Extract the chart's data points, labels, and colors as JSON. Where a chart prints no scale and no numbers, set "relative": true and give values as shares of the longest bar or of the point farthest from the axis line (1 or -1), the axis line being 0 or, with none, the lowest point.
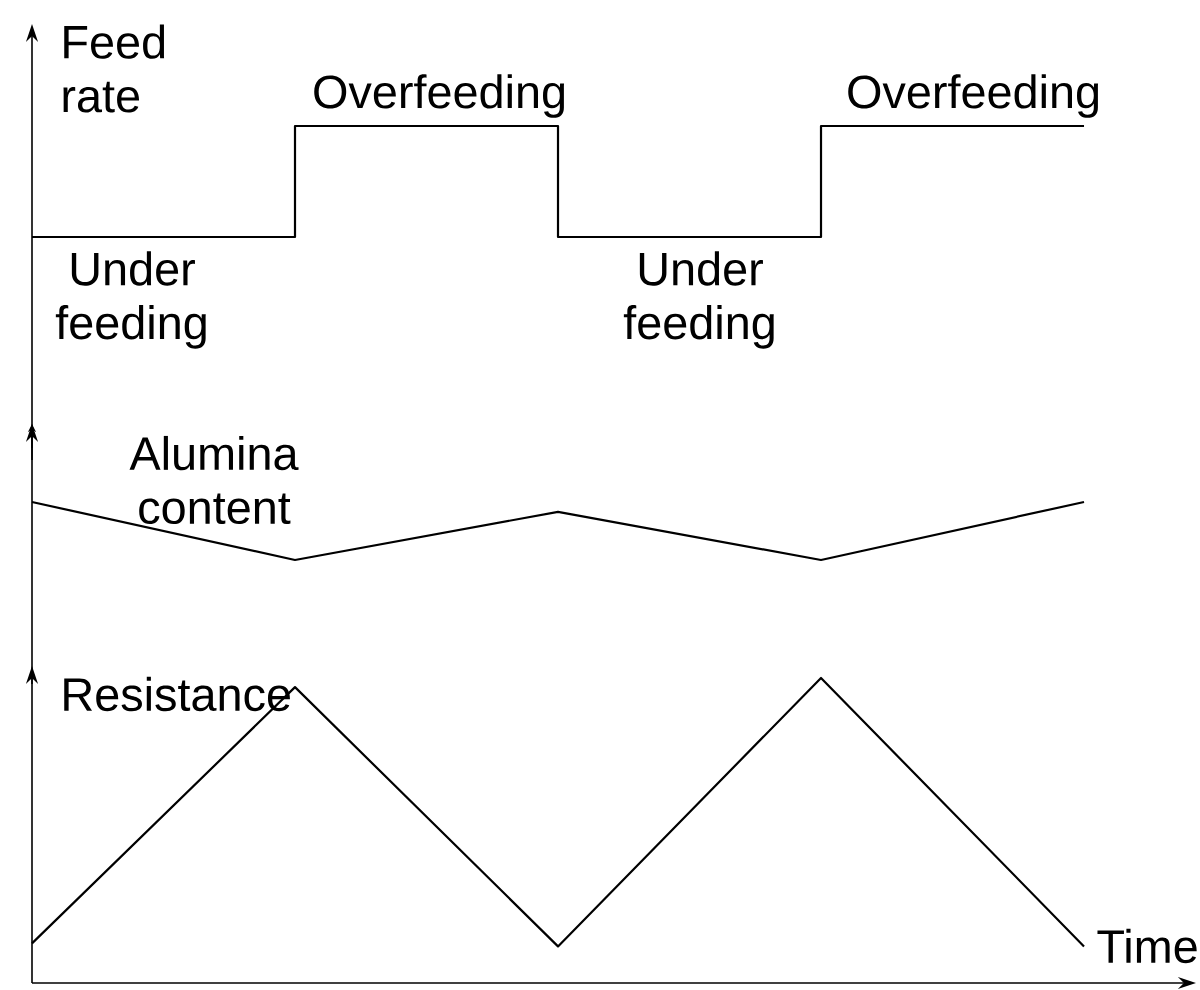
{
  "chart_data": [
    {
      "type": "step",
      "categories": [
        null,
        null,
        null,
        null,
        null
      ],
      "relative": true,
      "series": [
        {
          "name": "Feed rate",
          "color": "#000000",
          "values": [
            0,
            1,
            0,
            1,
            1
          ]
        }
      ],
      "annotations": [
        "Overfeeding",
        "Overfeeding",
        "Under feeding",
        "Under feeding"
      ]
    },
    {
      "type": "line",
      "categories": [
        null,
        null,
        null,
        null,
        null
      ],
      "relative": true,
      "series": [
        {
          "name": "Alumina content",
          "color": "#000000",
          "values": [
            1,
            0,
            0.83,
            0,
            1
          ]
        }
      ]
    },
    {
      "type": "line",
      "categories": [
        null,
        null,
        null,
        null,
        null
      ],
      "relative": true,
      "xlabel": "Time",
      "series": [
        {
          "name": "Resistance",
          "color": "#000000",
          "values": [
            0.13,
            0.97,
            0.12,
            1,
            0.12
          ]
        }
      ]
    }
  ]
}
